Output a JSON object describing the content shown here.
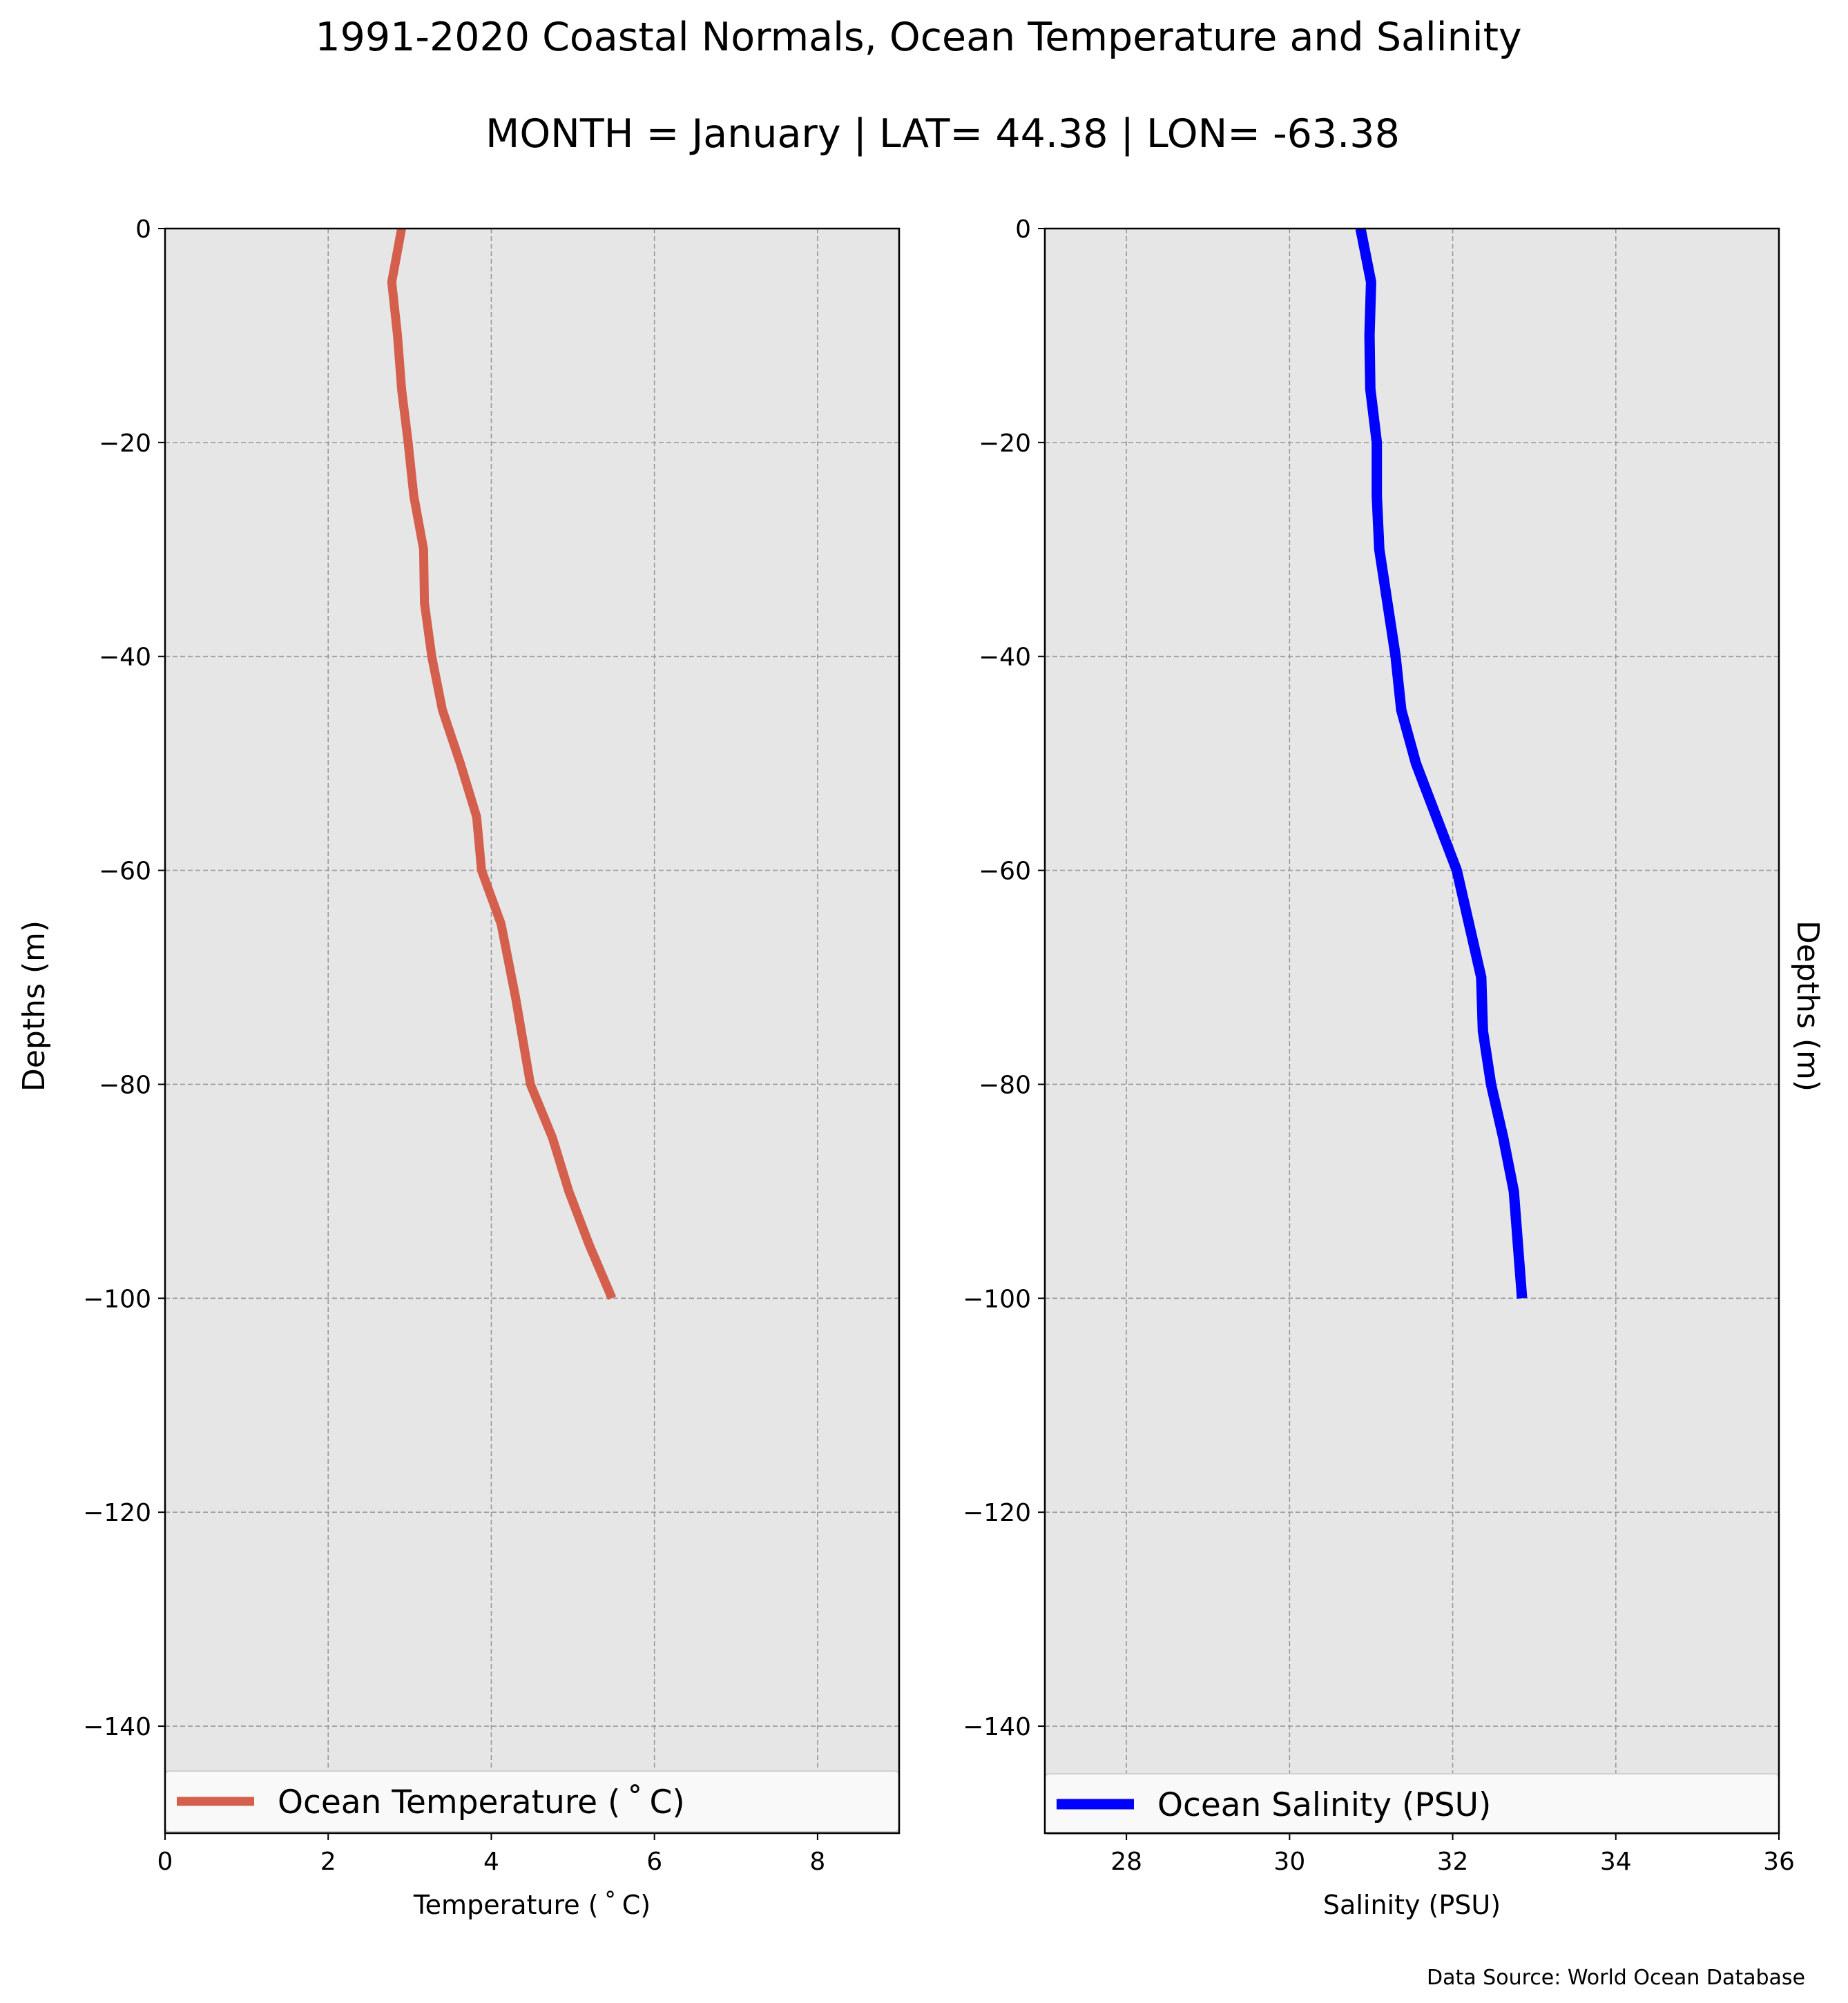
{
  "title": "1991-2020 Coastal Normals, Ocean Temperature and Salinity",
  "subtitle": "MONTH = January | LAT= 44.38 | LON= -63.38",
  "source": "Data Source: World Ocean Database",
  "chart_data": [
    {
      "type": "line",
      "xlabel": "Temperature ( $^\\circ$C)",
      "xlabel_display": "Temperature ( ˚ C)",
      "ylabel": "Depths (m)",
      "xlim": [
        0,
        9
      ],
      "ylim": [
        -150,
        0
      ],
      "xticks": [
        0,
        2,
        4,
        6,
        8
      ],
      "xtick_labels": [
        "0",
        "2",
        "4",
        "6",
        "8"
      ],
      "yticks": [
        0,
        -20,
        -40,
        -60,
        -80,
        -100,
        -120,
        -140
      ],
      "ytick_labels": [
        "0",
        "−20",
        "−40",
        "−60",
        "−80",
        "−100",
        "−120",
        "−140"
      ],
      "grid": true,
      "legend_position": "bottom",
      "background_color": "#e6e6e6",
      "series": [
        {
          "name": "Ocean Temperature ( ˚ C)",
          "color": "#d55f4d",
          "x": [
            2.9,
            2.78,
            2.85,
            2.9,
            2.98,
            3.05,
            3.17,
            3.18,
            3.27,
            3.4,
            3.62,
            3.82,
            3.88,
            4.12,
            4.3,
            4.48,
            4.75,
            4.95,
            5.2,
            5.48
          ],
          "y": [
            0,
            -5,
            -10,
            -15,
            -20,
            -25,
            -30,
            -35,
            -40,
            -45,
            -50,
            -55,
            -60,
            -65,
            -72,
            -80,
            -85,
            -90,
            -95,
            -100
          ]
        }
      ]
    },
    {
      "type": "line",
      "xlabel": "Salinity (PSU)",
      "ylabel": "Depths (m)",
      "xlim": [
        27,
        36
      ],
      "ylim": [
        -150,
        0
      ],
      "xticks": [
        28,
        30,
        32,
        34,
        36
      ],
      "xtick_labels": [
        "28",
        "30",
        "32",
        "34",
        "36"
      ],
      "yticks": [
        0,
        -20,
        -40,
        -60,
        -80,
        -100,
        -120,
        -140
      ],
      "ytick_labels": [
        "0",
        "−20",
        "−40",
        "−60",
        "−80",
        "−100",
        "−120",
        "−140"
      ],
      "grid": true,
      "legend_position": "bottom",
      "background_color": "#e6e6e6",
      "series": [
        {
          "name": "Ocean Salinity (PSU)",
          "color": "#0000ff",
          "x": [
            30.87,
            31.0,
            30.98,
            30.99,
            31.07,
            31.07,
            31.1,
            31.2,
            31.3,
            31.37,
            31.55,
            31.8,
            32.05,
            32.2,
            32.35,
            32.37,
            32.47,
            32.62,
            32.75,
            32.85
          ],
          "y": [
            0,
            -5,
            -10,
            -15,
            -20,
            -25,
            -30,
            -35,
            -40,
            -45,
            -50,
            -55,
            -60,
            -65,
            -70,
            -75,
            -80,
            -85,
            -90,
            -100
          ]
        }
      ]
    }
  ]
}
